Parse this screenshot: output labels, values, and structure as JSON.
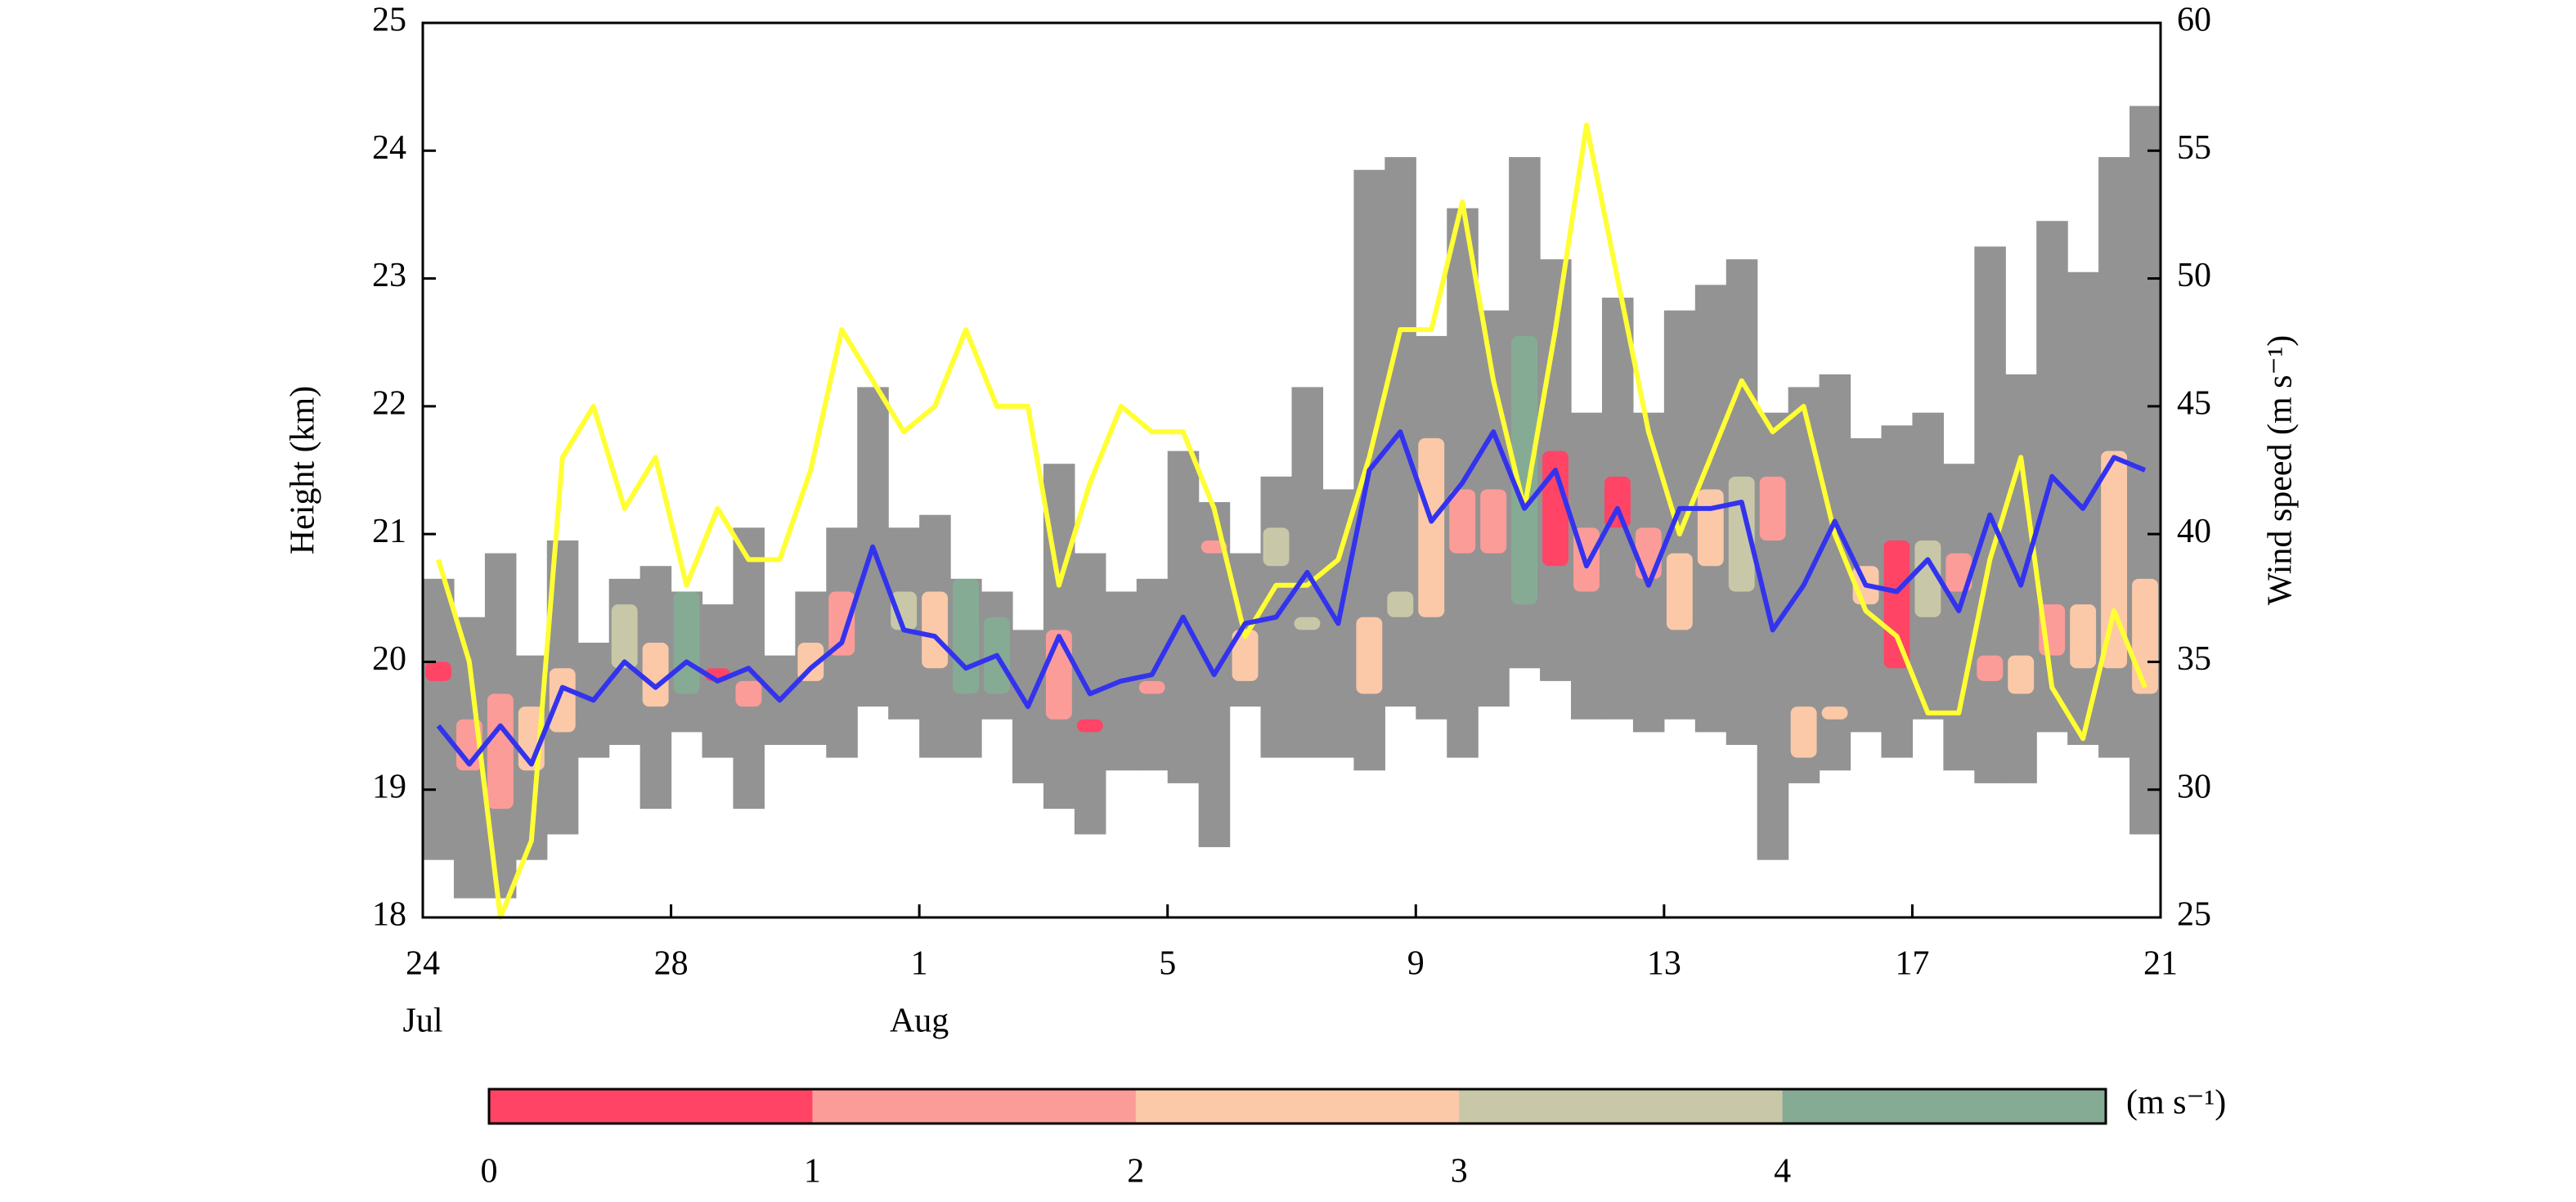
{
  "chart_data": {
    "type": "combo",
    "x": [
      0.25,
      0.75,
      1.25,
      1.75,
      2.25,
      2.75,
      3.25,
      3.75,
      4.25,
      4.75,
      5.25,
      5.75,
      6.25,
      6.75,
      7.25,
      7.75,
      8.25,
      8.75,
      9.25,
      9.75,
      10.25,
      10.75,
      11.25,
      11.75,
      12.25,
      12.75,
      13.25,
      13.75,
      14.25,
      14.75,
      15.25,
      15.75,
      16.25,
      16.75,
      17.25,
      17.75,
      18.25,
      18.75,
      19.25,
      19.75,
      20.25,
      20.75,
      21.25,
      21.75,
      22.25,
      22.75,
      23.25,
      23.75,
      24.25,
      24.75,
      25.25,
      25.75,
      26.25,
      26.75,
      27.25,
      27.75
    ],
    "xlim": [
      0,
      28
    ],
    "xticks": [
      {
        "value": 0,
        "label": "24"
      },
      {
        "value": 4,
        "label": "28"
      },
      {
        "value": 8,
        "label": "1"
      },
      {
        "value": 12,
        "label": "5"
      },
      {
        "value": 16,
        "label": "9"
      },
      {
        "value": 20,
        "label": "13"
      },
      {
        "value": 24,
        "label": "17"
      },
      {
        "value": 28,
        "label": "21"
      }
    ],
    "month_labels": [
      {
        "text": "Jul",
        "x": 0
      },
      {
        "text": "Aug",
        "x": 8
      }
    ],
    "ylabel": "Height (km)",
    "ylim": [
      18,
      25
    ],
    "yticks": [
      18,
      19,
      20,
      21,
      22,
      23,
      24,
      25
    ],
    "y2label": "Wind speed (m s⁻¹)",
    "y2lim": [
      25,
      60
    ],
    "y2ticks": [
      25,
      30,
      35,
      40,
      45,
      50,
      55,
      60
    ],
    "range": {
      "color": "#939393",
      "top": [
        20.65,
        20.35,
        20.85,
        20.05,
        20.95,
        20.15,
        20.65,
        20.75,
        20.55,
        20.45,
        21.05,
        20.05,
        20.55,
        21.05,
        22.15,
        21.05,
        21.15,
        20.65,
        20.55,
        20.25,
        21.55,
        20.85,
        20.55,
        20.65,
        21.65,
        21.25,
        20.85,
        21.45,
        22.15,
        21.35,
        23.85,
        23.95,
        22.55,
        23.55,
        22.75,
        23.95,
        23.15,
        21.95,
        22.85,
        21.95,
        22.75,
        22.95,
        23.15,
        21.95,
        22.15,
        22.25,
        21.75,
        21.85,
        21.95,
        21.55,
        23.25,
        22.25,
        23.45,
        23.05,
        23.95,
        24.35
      ],
      "bottom": [
        18.45,
        18.15,
        18.15,
        18.45,
        18.65,
        19.25,
        19.35,
        18.85,
        19.45,
        19.25,
        18.85,
        19.35,
        19.35,
        19.25,
        19.65,
        19.55,
        19.25,
        19.25,
        19.55,
        19.05,
        18.85,
        18.65,
        19.15,
        19.15,
        19.05,
        18.55,
        19.65,
        19.25,
        19.25,
        19.25,
        19.15,
        19.65,
        19.55,
        19.25,
        19.65,
        19.95,
        19.85,
        19.55,
        19.55,
        19.45,
        19.55,
        19.45,
        19.35,
        18.45,
        19.05,
        19.15,
        19.45,
        19.25,
        19.55,
        19.15,
        19.05,
        19.05,
        19.45,
        19.35,
        19.25,
        18.65
      ]
    },
    "cells": {
      "x": [
        0.25,
        0.75,
        1.25,
        1.75,
        2.25,
        3.25,
        3.75,
        4.25,
        4.75,
        5.25,
        6.25,
        6.75,
        7.75,
        8.25,
        8.75,
        9.25,
        10.25,
        10.75,
        11.75,
        12.75,
        13.25,
        13.75,
        14.25,
        15.25,
        15.75,
        16.25,
        16.75,
        17.25,
        17.75,
        18.25,
        18.75,
        19.25,
        19.75,
        20.25,
        20.75,
        21.25,
        21.75,
        22.25,
        22.75,
        23.25,
        23.75,
        24.25,
        24.75,
        25.25,
        25.75,
        26.25,
        26.75,
        27.25,
        27.75
      ],
      "bottom": [
        19.85,
        19.15,
        18.85,
        19.15,
        19.45,
        19.95,
        19.65,
        19.75,
        19.85,
        19.65,
        19.85,
        20.05,
        20.25,
        19.95,
        19.75,
        19.75,
        19.55,
        19.45,
        19.75,
        20.85,
        19.85,
        20.75,
        20.25,
        19.75,
        20.35,
        20.35,
        20.85,
        20.85,
        20.45,
        20.75,
        20.55,
        21.05,
        20.65,
        20.25,
        20.75,
        20.55,
        20.95,
        19.25,
        19.55,
        20.45,
        19.95,
        20.35,
        20.55,
        19.85,
        19.75,
        20.05,
        19.95,
        19.95,
        19.75
      ],
      "top": [
        20.0,
        19.55,
        19.75,
        19.65,
        19.95,
        20.45,
        20.15,
        20.55,
        19.95,
        19.85,
        20.15,
        20.55,
        20.55,
        20.55,
        20.65,
        20.35,
        20.25,
        19.55,
        19.85,
        20.95,
        20.25,
        21.05,
        20.35,
        20.35,
        20.55,
        21.75,
        21.35,
        21.35,
        22.55,
        21.65,
        21.05,
        21.45,
        21.05,
        20.85,
        21.35,
        21.45,
        21.45,
        19.65,
        19.65,
        20.75,
        20.95,
        20.95,
        20.85,
        20.05,
        20.05,
        20.45,
        20.45,
        21.65,
        20.65
      ],
      "value": [
        0.5,
        1.5,
        1.5,
        2.5,
        2.5,
        3.5,
        2.5,
        4.5,
        0.5,
        1.5,
        2.5,
        1.5,
        3.5,
        2.5,
        4.5,
        4.5,
        1.5,
        0.5,
        1.5,
        1.5,
        2.5,
        3.5,
        3.5,
        2.5,
        3.5,
        2.5,
        1.5,
        1.5,
        4.5,
        0.5,
        1.5,
        0.5,
        1.5,
        2.5,
        2.5,
        3.5,
        1.5,
        2.5,
        2.5,
        2.5,
        0.5,
        3.5,
        1.5,
        1.5,
        2.5,
        1.5,
        2.5,
        2.5,
        2.5
      ]
    },
    "series": [
      {
        "color": "#ffff33",
        "axis": "y2",
        "values": [
          39,
          35,
          25,
          28,
          43,
          45,
          41,
          43,
          38,
          41,
          39,
          39,
          42.5,
          48,
          46,
          44,
          45,
          48,
          45,
          45,
          38,
          42,
          45,
          44,
          44,
          41,
          36,
          38,
          38,
          39,
          43,
          48,
          48,
          53,
          46,
          41,
          48,
          56,
          50,
          44,
          40,
          43,
          46,
          44,
          45,
          40,
          37,
          36,
          33,
          33,
          39,
          43,
          34,
          32,
          37,
          34
        ]
      },
      {
        "color": "#3333ee",
        "values": [
          19.5,
          19.2,
          19.5,
          19.2,
          19.8,
          19.7,
          20.0,
          19.8,
          20.0,
          19.85,
          19.95,
          19.7,
          19.95,
          20.15,
          20.9,
          20.25,
          20.2,
          19.95,
          20.05,
          19.65,
          20.2,
          19.75,
          19.85,
          19.9,
          20.35,
          19.9,
          20.3,
          20.35,
          20.7,
          20.3,
          21.5,
          21.8,
          21.1,
          21.4,
          21.8,
          21.2,
          21.5,
          20.75,
          21.2,
          20.6,
          21.2,
          21.2,
          21.25,
          20.25,
          20.6,
          21.1,
          20.6,
          20.55,
          20.8,
          20.4,
          21.15,
          20.6,
          21.45,
          21.2,
          21.6,
          21.5
        ]
      }
    ],
    "colorbar": {
      "label": "(m s⁻¹)",
      "range": [
        0,
        5
      ],
      "ticks": [
        0,
        1,
        2,
        3,
        4
      ],
      "colors": [
        "#ff4466",
        "#fc9c98",
        "#fbc9a8",
        "#c8c8a8",
        "#86ab94"
      ]
    }
  }
}
